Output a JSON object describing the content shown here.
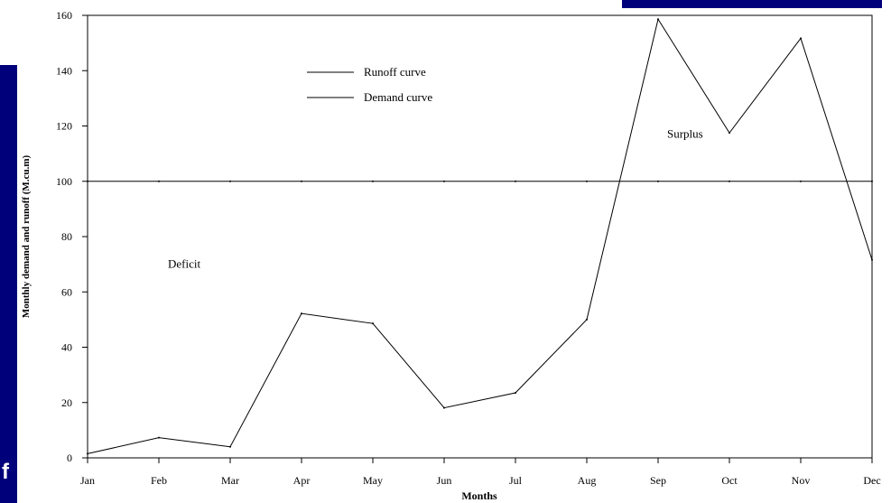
{
  "slide": {
    "bar_color": "#00007a",
    "left_bar_letter": "f"
  },
  "chart_data": {
    "type": "line",
    "title": "",
    "xlabel": "Months",
    "ylabel": "Monthly demand and runoff (M.cu.m)",
    "categories": [
      "Jan",
      "Feb",
      "Mar",
      "Apr",
      "May",
      "Jun",
      "Jul",
      "Aug",
      "Sep",
      "Oct",
      "Nov",
      "Dec"
    ],
    "series": [
      {
        "name": "Runoff curve",
        "values": [
          1.5,
          7.3,
          4.0,
          52.2,
          48.6,
          18.1,
          23.5,
          50.0,
          158.6,
          117.5,
          151.7,
          71.6
        ]
      },
      {
        "name": "Demand curve",
        "values": [
          100,
          100,
          100,
          100,
          100,
          100,
          100,
          100,
          100,
          100,
          100,
          100
        ]
      }
    ],
    "ylim": [
      0,
      160
    ],
    "yticks": [
      0,
      20,
      40,
      60,
      80,
      100,
      120,
      140,
      160
    ],
    "grid": false,
    "legend_position": "top-left",
    "annotations": [
      {
        "text": "Deficit",
        "x": "Feb",
        "y": 70
      },
      {
        "text": "Surplus",
        "x": "Sep",
        "y": 117
      }
    ],
    "line_color": "#000000"
  }
}
